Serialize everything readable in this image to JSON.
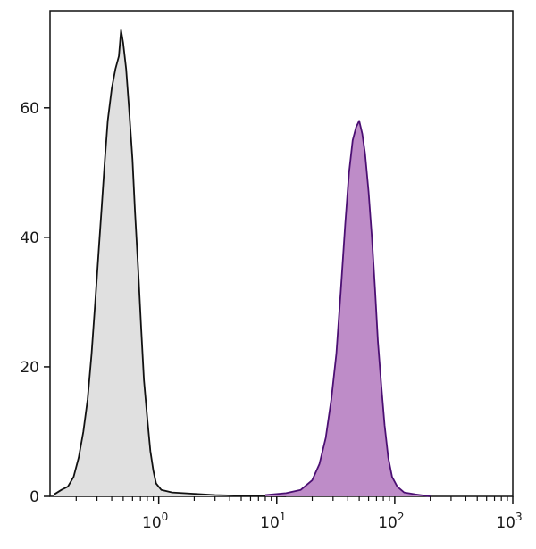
{
  "chart_data": {
    "type": "area",
    "x_scale": "log",
    "xlim": [
      0.12,
      1000
    ],
    "ylim": [
      0,
      75
    ],
    "grid": false,
    "legend": "none",
    "xticks": [
      {
        "value": 1,
        "base": "10",
        "exp": "0"
      },
      {
        "value": 10,
        "base": "10",
        "exp": "1"
      },
      {
        "value": 100,
        "base": "10",
        "exp": "2"
      },
      {
        "value": 1000,
        "base": "10",
        "exp": "3"
      }
    ],
    "yticks": [
      {
        "value": 0,
        "label": "0"
      },
      {
        "value": 20,
        "label": "20"
      },
      {
        "value": 40,
        "label": "40"
      },
      {
        "value": 60,
        "label": "60"
      }
    ],
    "series": [
      {
        "fill": "#e0e0e0",
        "stroke": "#111111",
        "points": [
          [
            0.13,
            0.3
          ],
          [
            0.15,
            1
          ],
          [
            0.17,
            1.5
          ],
          [
            0.19,
            3
          ],
          [
            0.21,
            6
          ],
          [
            0.23,
            10
          ],
          [
            0.25,
            15
          ],
          [
            0.27,
            22
          ],
          [
            0.29,
            30
          ],
          [
            0.31,
            38
          ],
          [
            0.33,
            45
          ],
          [
            0.35,
            52
          ],
          [
            0.37,
            58
          ],
          [
            0.4,
            63
          ],
          [
            0.43,
            66
          ],
          [
            0.46,
            68
          ],
          [
            0.48,
            72
          ],
          [
            0.5,
            70
          ],
          [
            0.53,
            66
          ],
          [
            0.56,
            60
          ],
          [
            0.6,
            52
          ],
          [
            0.63,
            44
          ],
          [
            0.67,
            35
          ],
          [
            0.71,
            26
          ],
          [
            0.75,
            18
          ],
          [
            0.8,
            12
          ],
          [
            0.85,
            7
          ],
          [
            0.9,
            4
          ],
          [
            0.95,
            2
          ],
          [
            1.05,
            1
          ],
          [
            1.3,
            0.6
          ],
          [
            2,
            0.4
          ],
          [
            3,
            0.2
          ],
          [
            5,
            0.1
          ],
          [
            8,
            0.05
          ],
          [
            12,
            0
          ]
        ]
      },
      {
        "fill": "#be8cc8",
        "stroke": "#4b0f73",
        "points": [
          [
            8,
            0.2
          ],
          [
            12,
            0.5
          ],
          [
            16,
            1
          ],
          [
            20,
            2.5
          ],
          [
            23,
            5
          ],
          [
            26,
            9
          ],
          [
            29,
            15
          ],
          [
            32,
            22
          ],
          [
            35,
            32
          ],
          [
            38,
            42
          ],
          [
            41,
            50
          ],
          [
            44,
            55
          ],
          [
            47,
            57
          ],
          [
            50,
            58
          ],
          [
            53,
            56
          ],
          [
            56,
            53
          ],
          [
            60,
            47
          ],
          [
            64,
            40
          ],
          [
            68,
            32
          ],
          [
            72,
            24
          ],
          [
            77,
            17
          ],
          [
            82,
            11
          ],
          [
            88,
            6
          ],
          [
            95,
            3
          ],
          [
            105,
            1.5
          ],
          [
            120,
            0.6
          ],
          [
            150,
            0.3
          ],
          [
            200,
            0
          ]
        ]
      }
    ]
  }
}
